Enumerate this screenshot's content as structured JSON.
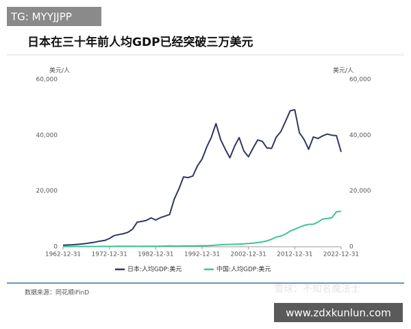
{
  "overlay": {
    "tag": "TG: MYYJJPP",
    "watermark": "雪球：不知名魔法士",
    "site": "www.zdxkunlun.com"
  },
  "chart_data": {
    "type": "line",
    "title": "日本在三十年前人均GDP已经突破三万美元",
    "y_label": "美元/人",
    "y2_label": "美元/人",
    "source": "数据来源：同花顺iFinD",
    "x": [
      "1962-12-31",
      "1963-12-31",
      "1964-12-31",
      "1965-12-31",
      "1966-12-31",
      "1967-12-31",
      "1968-12-31",
      "1969-12-31",
      "1970-12-31",
      "1971-12-31",
      "1972-12-31",
      "1973-12-31",
      "1974-12-31",
      "1975-12-31",
      "1976-12-31",
      "1977-12-31",
      "1978-12-31",
      "1979-12-31",
      "1980-12-31",
      "1981-12-31",
      "1982-12-31",
      "1983-12-31",
      "1984-12-31",
      "1985-12-31",
      "1986-12-31",
      "1987-12-31",
      "1988-12-31",
      "1989-12-31",
      "1990-12-31",
      "1991-12-31",
      "1992-12-31",
      "1993-12-31",
      "1994-12-31",
      "1995-12-31",
      "1996-12-31",
      "1997-12-31",
      "1998-12-31",
      "1999-12-31",
      "2000-12-31",
      "2001-12-31",
      "2002-12-31",
      "2003-12-31",
      "2004-12-31",
      "2005-12-31",
      "2006-12-31",
      "2007-12-31",
      "2008-12-31",
      "2009-12-31",
      "2010-12-31",
      "2011-12-31",
      "2012-12-31",
      "2013-12-31",
      "2014-12-31",
      "2015-12-31",
      "2016-12-31",
      "2017-12-31",
      "2018-12-31",
      "2019-12-31",
      "2020-12-31",
      "2021-12-31",
      "2022-12-31"
    ],
    "xticks": [
      "1962-12-31",
      "1972-12-31",
      "1982-12-31",
      "1992-12-31",
      "2002-12-31",
      "2012-12-31",
      "2022-12-31"
    ],
    "series": [
      {
        "name": "日本:人均GDP:美元",
        "color": "#2f3562",
        "values": [
          563,
          633,
          717,
          836,
          980,
          1150,
          1450,
          1670,
          2040,
          2270,
          2950,
          3990,
          4350,
          4660,
          5200,
          6330,
          8820,
          9100,
          9460,
          10360,
          9580,
          10420,
          10980,
          11580,
          17110,
          20750,
          25050,
          24820,
          25370,
          29000,
          31460,
          35770,
          39270,
          44200,
          38440,
          35020,
          31900,
          36030,
          39170,
          34410,
          32290,
          35380,
          38300,
          37810,
          35430,
          35280,
          39340,
          41310,
          44970,
          48760,
          49150,
          40900,
          38480,
          34960,
          39400,
          38830,
          39750,
          40420,
          40040,
          39830,
          34020
        ]
      },
      {
        "name": "中国:人均GDP:美元",
        "color": "#3cc39a",
        "values": [
          70,
          74,
          85,
          98,
          104,
          97,
          91,
          100,
          113,
          119,
          131,
          157,
          160,
          178,
          165,
          185,
          156,
          183,
          195,
          197,
          203,
          225,
          250,
          294,
          281,
          252,
          284,
          311,
          318,
          333,
          366,
          377,
          473,
          610,
          709,
          782,
          829,
          873,
          959,
          1053,
          1149,
          1289,
          1509,
          1753,
          2099,
          2694,
          3468,
          3832,
          4550,
          5614,
          6301,
          7020,
          7636,
          8016,
          8094,
          8817,
          9905,
          10144,
          10409,
          12556,
          12720
        ]
      }
    ],
    "ylim": [
      0,
      60000
    ],
    "yticks": [
      0,
      {
        "value": 20000,
        "label": "20,000"
      },
      {
        "value": 40000,
        "label": "40,000"
      },
      {
        "value": 60000,
        "label": "60,000"
      }
    ],
    "y2lim": [
      0,
      60000
    ],
    "y2ticks": [
      0,
      {
        "value": 20000,
        "label": "20,000"
      },
      {
        "value": 40000,
        "label": "40,000"
      },
      {
        "value": 60000,
        "label": "60,000"
      }
    ],
    "grid": false
  }
}
